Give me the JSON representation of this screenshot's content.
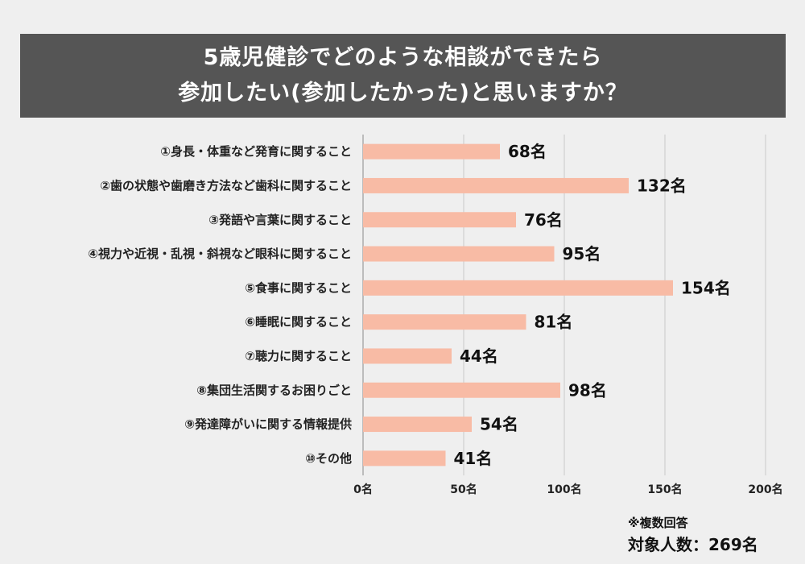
{
  "title": {
    "line1": "5歳児健診でどのような相談ができたら",
    "line2": "参加したい(参加したかった)と思いますか？"
  },
  "notes": {
    "multiple_answers": "※複数回答",
    "respondents": "対象人数：269名"
  },
  "colors": {
    "bar": "#f8bba5",
    "grid": "#c8c8c8",
    "title_bg": "#555555"
  },
  "chart_data": {
    "type": "bar",
    "orientation": "horizontal",
    "categories": [
      "①身長・体重など発育に関すること",
      "②歯の状態や歯磨き方法など歯科に関すること",
      "③発語や言葉に関すること",
      "④視力や近視・乱視・斜視など眼科に関すること",
      "⑤食事に関すること",
      "⑥睡眠に関すること",
      "⑦聴力に関すること",
      "⑧集団生活関するお困りごと",
      "⑨発達障がいに関する情報提供",
      "⑩その他"
    ],
    "values": [
      68,
      132,
      76,
      95,
      154,
      81,
      44,
      98,
      54,
      41
    ],
    "value_labels": [
      "68名",
      "132名",
      "76名",
      "95名",
      "154名",
      "81名",
      "44名",
      "98名",
      "54名",
      "41名"
    ],
    "xlim": [
      0,
      200
    ],
    "ticks": [
      0,
      50,
      100,
      150,
      200
    ],
    "tick_labels": [
      "0名",
      "50名",
      "100名",
      "150名",
      "200名"
    ],
    "grid": true
  }
}
